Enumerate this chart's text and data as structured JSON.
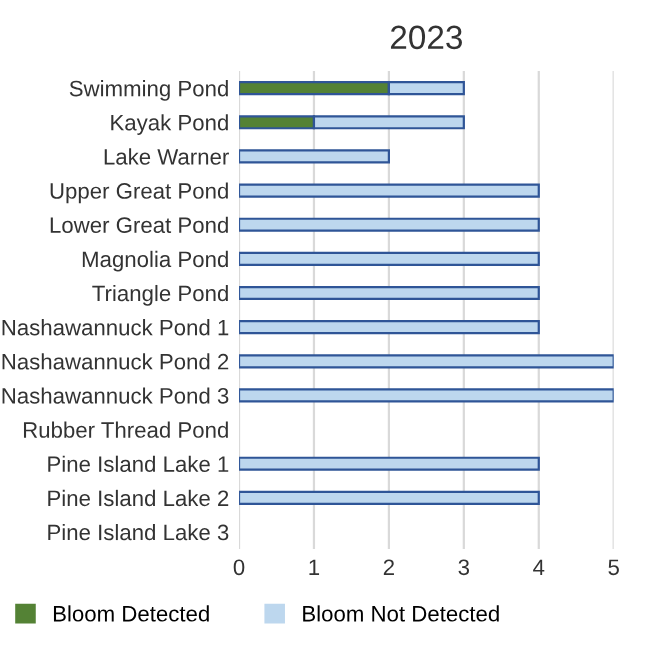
{
  "chart_data": {
    "type": "bar",
    "orientation": "horizontal",
    "stacked": true,
    "title": "2023",
    "categories": [
      "Swimming Pond",
      "Kayak Pond",
      "Lake Warner",
      "Upper Great Pond",
      "Lower Great Pond",
      "Magnolia Pond",
      "Triangle Pond",
      "Nashawannuck Pond 1",
      "Nashawannuck Pond 2",
      "Nashawannuck Pond 3",
      "Rubber Thread Pond",
      "Pine Island Lake 1",
      "Pine Island Lake 2",
      "Pine Island Lake 3"
    ],
    "series": [
      {
        "name": "Bloom Detected",
        "color": "#548235",
        "values": [
          2,
          1,
          0,
          0,
          0,
          0,
          0,
          0,
          0,
          0,
          0,
          0,
          0,
          0
        ]
      },
      {
        "name": "Bloom Not Detected",
        "color": "#bdd7ee",
        "values": [
          1,
          2,
          2,
          4,
          4,
          4,
          4,
          4,
          5,
          5,
          0,
          4,
          4,
          0
        ]
      }
    ],
    "xlim": [
      0,
      5
    ],
    "xticks": [
      0,
      1,
      2,
      3,
      4,
      5
    ],
    "grid": "x",
    "legend": "bottom"
  }
}
